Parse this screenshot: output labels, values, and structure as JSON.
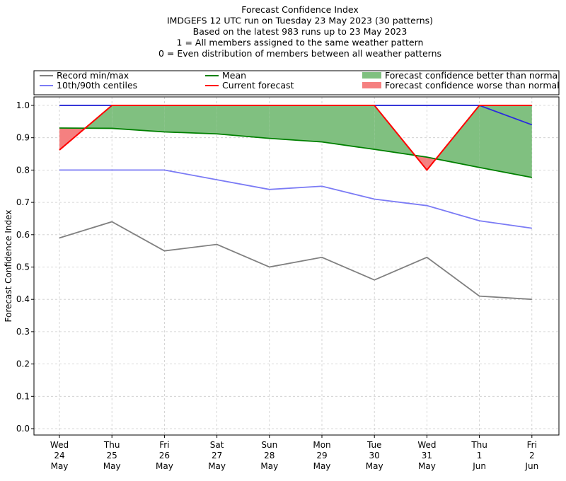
{
  "chart_data": {
    "type": "line",
    "title_lines": [
      "Forecast Confidence Index",
      "IMDGEFS 12 UTC run on Tuesday 23 May 2023 (30 patterns)",
      "Based on the latest 983 runs up to 23 May 2023",
      "1 = All members assigned to the same weather pattern",
      "0 = Even distribution of members between all weather patterns"
    ],
    "ylabel": "Forecast Confidence Index",
    "xlabel": "",
    "ylim": [
      0,
      1
    ],
    "y_ticks": [
      "0.0",
      "0.1",
      "0.2",
      "0.3",
      "0.4",
      "0.5",
      "0.6",
      "0.7",
      "0.8",
      "0.9",
      "1.0"
    ],
    "grid": true,
    "legend_position": "top, above plot",
    "categories": [
      [
        "Wed",
        "24",
        "May"
      ],
      [
        "Thu",
        "25",
        "May"
      ],
      [
        "Fri",
        "26",
        "May"
      ],
      [
        "Sat",
        "27",
        "May"
      ],
      [
        "Sun",
        "28",
        "May"
      ],
      [
        "Mon",
        "29",
        "May"
      ],
      [
        "Tue",
        "30",
        "May"
      ],
      [
        "Wed",
        "31",
        "May"
      ],
      [
        "Thu",
        "1",
        "Jun"
      ],
      [
        "Fri",
        "2",
        "Jun"
      ]
    ],
    "series": [
      {
        "name": "Record min/max",
        "color": "#808080",
        "role": "record_min",
        "values": [
          0.59,
          0.64,
          0.55,
          0.57,
          0.5,
          0.53,
          0.46,
          0.53,
          0.41,
          0.4
        ]
      },
      {
        "name": "Record min/max",
        "color": "#808080",
        "role": "record_max",
        "values": [
          1.0,
          1.0,
          1.0,
          1.0,
          1.0,
          1.0,
          1.0,
          1.0,
          1.0,
          1.0
        ]
      },
      {
        "name": "10th/90th centiles",
        "color": "#7b7bf5",
        "role": "p10",
        "values": [
          0.8,
          0.8,
          0.8,
          0.77,
          0.74,
          0.75,
          0.71,
          0.69,
          0.643,
          0.62
        ]
      },
      {
        "name": "10th/90th centiles",
        "color": "#2a2ae0",
        "role": "p90",
        "values": [
          1.0,
          1.0,
          1.0,
          1.0,
          1.0,
          1.0,
          1.0,
          1.0,
          1.0,
          0.94
        ]
      },
      {
        "name": "Mean",
        "color": "#008000",
        "role": "mean",
        "values": [
          0.93,
          0.929,
          0.918,
          0.912,
          0.898,
          0.887,
          0.864,
          0.84,
          0.808,
          0.777
        ]
      },
      {
        "name": "Current forecast",
        "color": "#ff0000",
        "role": "current",
        "values": [
          0.862,
          1.0,
          1.0,
          1.0,
          1.0,
          1.0,
          1.0,
          0.8,
          1.0,
          1.0
        ]
      }
    ],
    "legend": [
      {
        "label": "Record min/max",
        "kind": "line",
        "color": "#808080"
      },
      {
        "label": "10th/90th centiles",
        "kind": "line",
        "color": "#7b7bf5"
      },
      {
        "label": "Mean",
        "kind": "line",
        "color": "#008000"
      },
      {
        "label": "Current forecast",
        "kind": "line",
        "color": "#ff0000"
      },
      {
        "label": "Forecast confidence better than normal",
        "kind": "patch",
        "color": "#80c080"
      },
      {
        "label": "Forecast confidence worse than normal",
        "kind": "patch",
        "color": "#f58080"
      }
    ],
    "fill_colors": {
      "better": "#80c080",
      "worse": "#f58080"
    }
  }
}
